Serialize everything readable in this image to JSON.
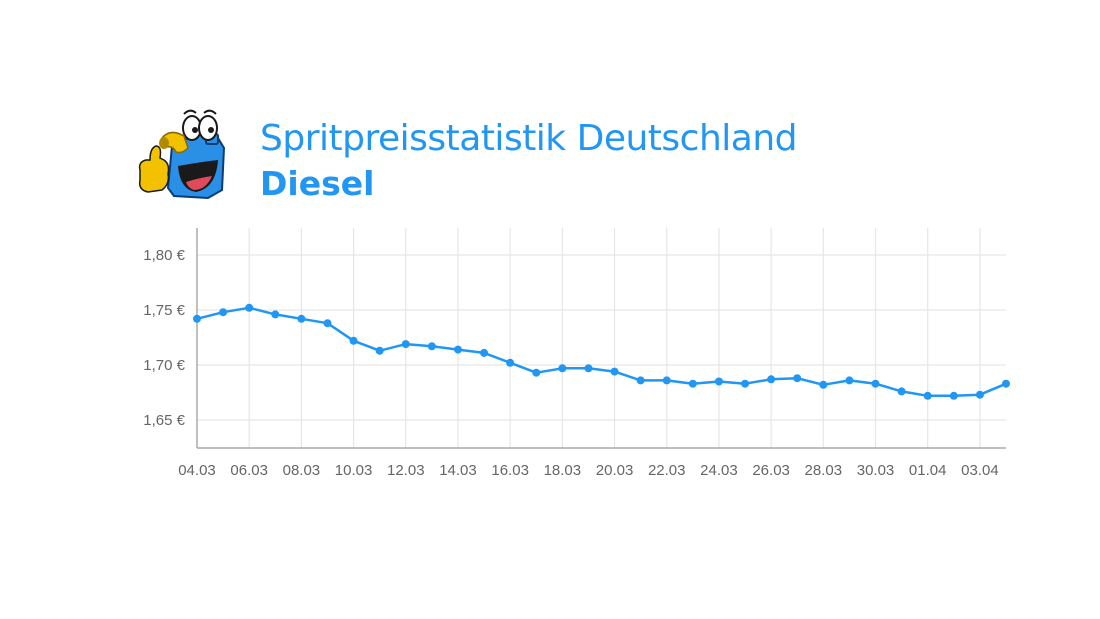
{
  "header": {
    "title": "Spritpreisstatistik Deutschland",
    "subtitle": "Diesel",
    "logo": "fuel-canister-mascot-icon"
  },
  "colors": {
    "accent": "#2196f3",
    "grid": "#e6e6e6",
    "axis": "#999999",
    "tick_text": "#666666"
  },
  "chart_data": {
    "type": "line",
    "title": "Spritpreisstatistik Deutschland – Diesel",
    "xlabel": "",
    "ylabel": "",
    "ylim": [
      1.625,
      1.825
    ],
    "y_ticks": [
      1.8,
      1.75,
      1.7,
      1.65
    ],
    "y_tick_labels": [
      "1,80 €",
      "1,75 €",
      "1,70 €",
      "1,65 €"
    ],
    "x_tick_labels": [
      "04.03",
      "06.03",
      "08.03",
      "10.03",
      "12.03",
      "14.03",
      "16.03",
      "18.03",
      "20.03",
      "22.03",
      "24.03",
      "26.03",
      "28.03",
      "30.03",
      "01.04",
      "03.04"
    ],
    "grid": true,
    "legend": "none",
    "categories": [
      "04.03",
      "05.03",
      "06.03",
      "07.03",
      "08.03",
      "09.03",
      "10.03",
      "11.03",
      "12.03",
      "13.03",
      "14.03",
      "15.03",
      "16.03",
      "17.03",
      "18.03",
      "19.03",
      "20.03",
      "21.03",
      "22.03",
      "23.03",
      "24.03",
      "25.03",
      "26.03",
      "27.03",
      "28.03",
      "29.03",
      "30.03",
      "31.03",
      "01.04",
      "02.04",
      "03.04",
      "04.04"
    ],
    "series": [
      {
        "name": "Diesel",
        "color": "#2196f3",
        "values": [
          1.742,
          1.748,
          1.752,
          1.746,
          1.742,
          1.738,
          1.722,
          1.713,
          1.719,
          1.717,
          1.714,
          1.711,
          1.702,
          1.693,
          1.697,
          1.697,
          1.694,
          1.686,
          1.686,
          1.683,
          1.685,
          1.683,
          1.687,
          1.688,
          1.682,
          1.686,
          1.683,
          1.676,
          1.672,
          1.672,
          1.673,
          1.683
        ]
      }
    ]
  }
}
